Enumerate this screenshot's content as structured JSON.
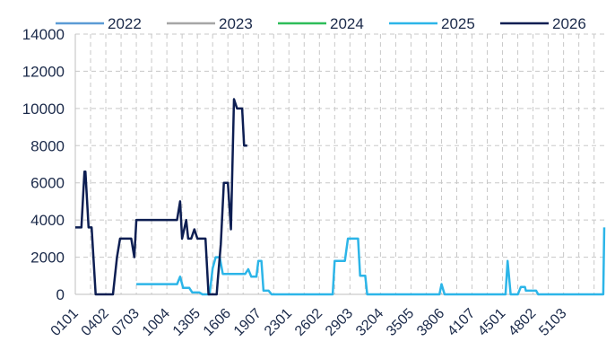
{
  "chart_data": {
    "type": "line",
    "title": "",
    "xlabel": "",
    "ylabel": "",
    "ylim": [
      0,
      14000
    ],
    "yticks": [
      0,
      2000,
      4000,
      6000,
      8000,
      10000,
      12000,
      14000
    ],
    "ytick_labels": [
      "0",
      "2000",
      "4000",
      "6000",
      "8000",
      "10000",
      "12000",
      "14000"
    ],
    "x_labels": [
      "0101",
      "0402",
      "0703",
      "1004",
      "1305",
      "1606",
      "1907",
      "2301",
      "2602",
      "2903",
      "3204",
      "3505",
      "3806",
      "4107",
      "4501",
      "4802",
      "5103"
    ],
    "x_range": [
      1,
      53
    ],
    "grid": true,
    "legend_position": "top",
    "series": [
      {
        "name": "2022",
        "color": "#5b9bd5",
        "points": []
      },
      {
        "name": "2023",
        "color": "#a6a6a6",
        "points": []
      },
      {
        "name": "2024",
        "color": "#2ebd59",
        "points": []
      },
      {
        "name": "2025",
        "color": "#2cb5e8",
        "points": [
          [
            7.0,
            550
          ],
          [
            11.0,
            550
          ],
          [
            11.3,
            950
          ],
          [
            11.6,
            350
          ],
          [
            12.2,
            350
          ],
          [
            12.5,
            100
          ],
          [
            13.2,
            100
          ],
          [
            13.5,
            0
          ],
          [
            14.2,
            0
          ],
          [
            14.5,
            1400
          ],
          [
            14.8,
            2000
          ],
          [
            15.2,
            2000
          ],
          [
            15.5,
            1100
          ],
          [
            17.7,
            1100
          ],
          [
            18.0,
            1350
          ],
          [
            18.3,
            950
          ],
          [
            18.8,
            950
          ],
          [
            19.0,
            1800
          ],
          [
            19.3,
            1800
          ],
          [
            19.5,
            200
          ],
          [
            20.0,
            200
          ],
          [
            20.3,
            0
          ],
          [
            26.3,
            0
          ],
          [
            26.5,
            1800
          ],
          [
            27.5,
            1800
          ],
          [
            27.8,
            3000
          ],
          [
            28.8,
            3000
          ],
          [
            29.0,
            1000
          ],
          [
            29.5,
            1000
          ],
          [
            29.7,
            0
          ],
          [
            36.8,
            0
          ],
          [
            37.0,
            550
          ],
          [
            37.3,
            0
          ],
          [
            43.3,
            0
          ],
          [
            43.5,
            1800
          ],
          [
            43.8,
            0
          ],
          [
            44.5,
            0
          ],
          [
            44.8,
            400
          ],
          [
            45.2,
            400
          ],
          [
            45.3,
            200
          ],
          [
            46.3,
            200
          ],
          [
            46.5,
            0
          ],
          [
            52.9,
            0
          ],
          [
            53.0,
            3600
          ]
        ]
      },
      {
        "name": "2026",
        "color": "#0d1e52",
        "points": [
          [
            1.0,
            3600
          ],
          [
            1.6,
            3600
          ],
          [
            1.9,
            6600
          ],
          [
            2.0,
            6600
          ],
          [
            2.3,
            3600
          ],
          [
            2.6,
            3600
          ],
          [
            3.0,
            0
          ],
          [
            4.7,
            0
          ],
          [
            5.1,
            2000
          ],
          [
            5.4,
            3000
          ],
          [
            6.5,
            3000
          ],
          [
            6.8,
            2000
          ],
          [
            7.0,
            4000
          ],
          [
            11.0,
            4000
          ],
          [
            11.3,
            5000
          ],
          [
            11.5,
            3000
          ],
          [
            11.9,
            4000
          ],
          [
            12.1,
            3000
          ],
          [
            12.4,
            3000
          ],
          [
            12.7,
            3500
          ],
          [
            13.0,
            3000
          ],
          [
            13.8,
            3000
          ],
          [
            14.1,
            0
          ],
          [
            14.9,
            0
          ],
          [
            15.0,
            700
          ],
          [
            15.3,
            2700
          ],
          [
            15.6,
            6000
          ],
          [
            16.0,
            6000
          ],
          [
            16.3,
            3500
          ],
          [
            16.6,
            10500
          ],
          [
            16.9,
            10000
          ],
          [
            17.4,
            10000
          ],
          [
            17.6,
            8000
          ],
          [
            17.9,
            8000
          ]
        ]
      }
    ]
  }
}
